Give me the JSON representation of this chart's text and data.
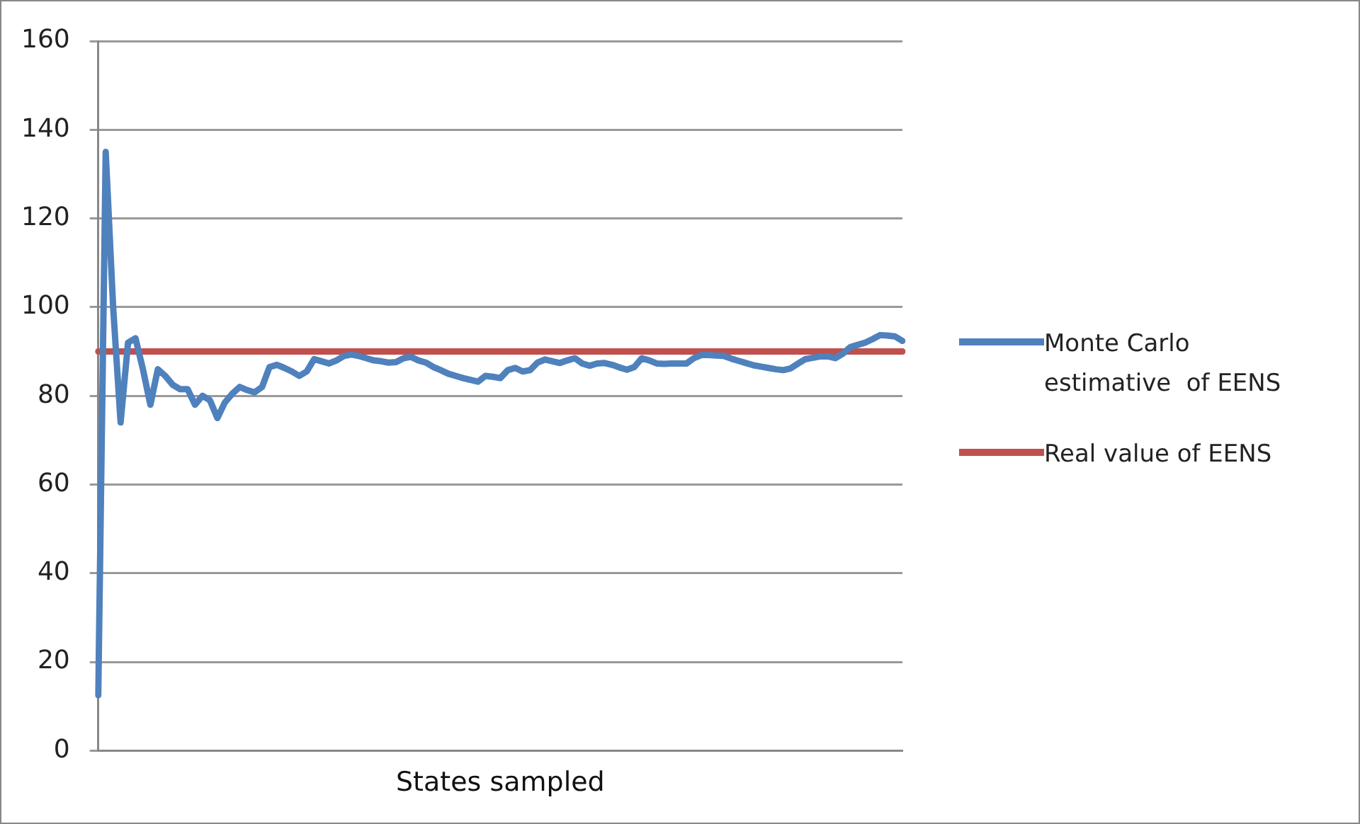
{
  "chart_data": {
    "type": "line",
    "xlabel": "States sampled",
    "categories": [
      null,
      null,
      null,
      null,
      null,
      null,
      null,
      null,
      null,
      null,
      null,
      null,
      null,
      null,
      null,
      null,
      null,
      null,
      null,
      null,
      null,
      null,
      null,
      null,
      null,
      null,
      null,
      null,
      null,
      null,
      null,
      null,
      null,
      null,
      null,
      null,
      null,
      null,
      null,
      null,
      null,
      null,
      null,
      null,
      null,
      null,
      null,
      null,
      null,
      null,
      null,
      null,
      null,
      null,
      null,
      null,
      null,
      null,
      null,
      null,
      null,
      null,
      null,
      null,
      null,
      null,
      null,
      null,
      null,
      null,
      null,
      null,
      null,
      null,
      null,
      null,
      null,
      null,
      null,
      null,
      null,
      null,
      null,
      null,
      null,
      null,
      null,
      null,
      null,
      null,
      null,
      null,
      null,
      null,
      null,
      null,
      null,
      null,
      null,
      null,
      null,
      null,
      null,
      null,
      null,
      null,
      null,
      null,
      null
    ],
    "series": [
      {
        "name": "Monte Carlo estimative  of EENS",
        "color": "#4f81bd",
        "values": [
          12.5,
          135,
          100,
          74,
          92,
          93,
          86,
          78,
          86,
          84.5,
          82.5,
          81.5,
          81.5,
          78,
          80,
          79,
          75,
          78.5,
          80.5,
          82,
          81.3,
          80.8,
          82,
          86.5,
          87,
          86.3,
          85.5,
          84.5,
          85.5,
          88.3,
          87.8,
          87.3,
          88,
          89,
          89.3,
          89,
          88.5,
          88,
          87.8,
          87.5,
          87.6,
          88.5,
          88.8,
          88,
          87.5,
          86.5,
          85.8,
          85,
          84.5,
          84,
          83.6,
          83.2,
          84.5,
          84.3,
          84,
          85.8,
          86.3,
          85.5,
          85.8,
          87.5,
          88.2,
          87.8,
          87.4,
          88,
          88.5,
          87.3,
          86.8,
          87.3,
          87.4,
          87,
          86.4,
          85.9,
          86.5,
          88.5,
          88,
          87.3,
          87.2,
          87.3,
          87.3,
          87.3,
          88.5,
          89.2,
          89.2,
          89.1,
          89,
          88.4,
          87.9,
          87.4,
          86.9,
          86.6,
          86.3,
          86,
          85.8,
          86.2,
          87.3,
          88.3,
          88.6,
          88.9,
          88.9,
          88.5,
          89.5,
          91,
          91.5,
          92,
          92.8,
          93.7,
          93.6,
          93.4,
          92.4
        ]
      },
      {
        "name": "Real value of EENS",
        "color": "#c0504d",
        "values": [
          90,
          90,
          90,
          90,
          90,
          90,
          90,
          90,
          90,
          90,
          90,
          90,
          90,
          90,
          90,
          90,
          90,
          90,
          90,
          90,
          90,
          90,
          90,
          90,
          90,
          90,
          90,
          90,
          90,
          90,
          90,
          90,
          90,
          90,
          90,
          90,
          90,
          90,
          90,
          90,
          90,
          90,
          90,
          90,
          90,
          90,
          90,
          90,
          90,
          90,
          90,
          90,
          90,
          90,
          90,
          90,
          90,
          90,
          90,
          90,
          90,
          90,
          90,
          90,
          90,
          90,
          90,
          90,
          90,
          90,
          90,
          90,
          90,
          90,
          90,
          90,
          90,
          90,
          90,
          90,
          90,
          90,
          90,
          90,
          90,
          90,
          90,
          90,
          90,
          90,
          90,
          90,
          90,
          90,
          90,
          90,
          90,
          90,
          90,
          90,
          90,
          90,
          90,
          90,
          90,
          90,
          90,
          90,
          90
        ]
      }
    ],
    "ylim": [
      0,
      160
    ],
    "yticks": [
      0,
      20,
      40,
      60,
      80,
      100,
      120,
      140,
      160
    ],
    "grid": "y",
    "legend": "right",
    "tick_labels": "y",
    "marker": "none",
    "line_style": "solid"
  }
}
